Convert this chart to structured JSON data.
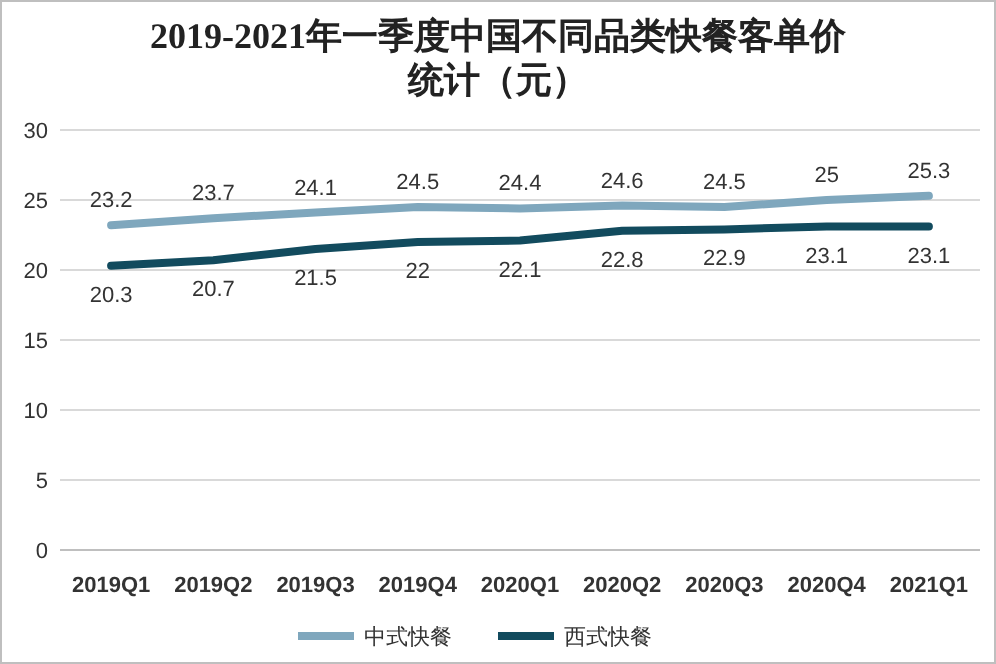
{
  "chart_data": {
    "type": "line",
    "title": "2019-2021年一季度中国不同品类快餐客单价统计（元）",
    "categories": [
      "2019Q1",
      "2019Q2",
      "2019Q3",
      "2019Q4",
      "2020Q1",
      "2020Q2",
      "2020Q3",
      "2020Q4",
      "2021Q1"
    ],
    "series": [
      {
        "name": "中式快餐",
        "color": "#7fa7bd",
        "values": [
          23.2,
          23.7,
          24.1,
          24.5,
          24.4,
          24.6,
          24.5,
          25,
          25.3
        ]
      },
      {
        "name": "西式快餐",
        "color": "#124b5e",
        "values": [
          20.3,
          20.7,
          21.5,
          22,
          22.1,
          22.8,
          22.9,
          23.1,
          23.1
        ]
      }
    ],
    "ylim": [
      0,
      30
    ],
    "yticks": [
      0,
      5,
      10,
      15,
      20,
      25,
      30
    ],
    "grid": "y",
    "legend": "bottom",
    "data_labels": true,
    "marker": "none",
    "line_style": "solid"
  }
}
